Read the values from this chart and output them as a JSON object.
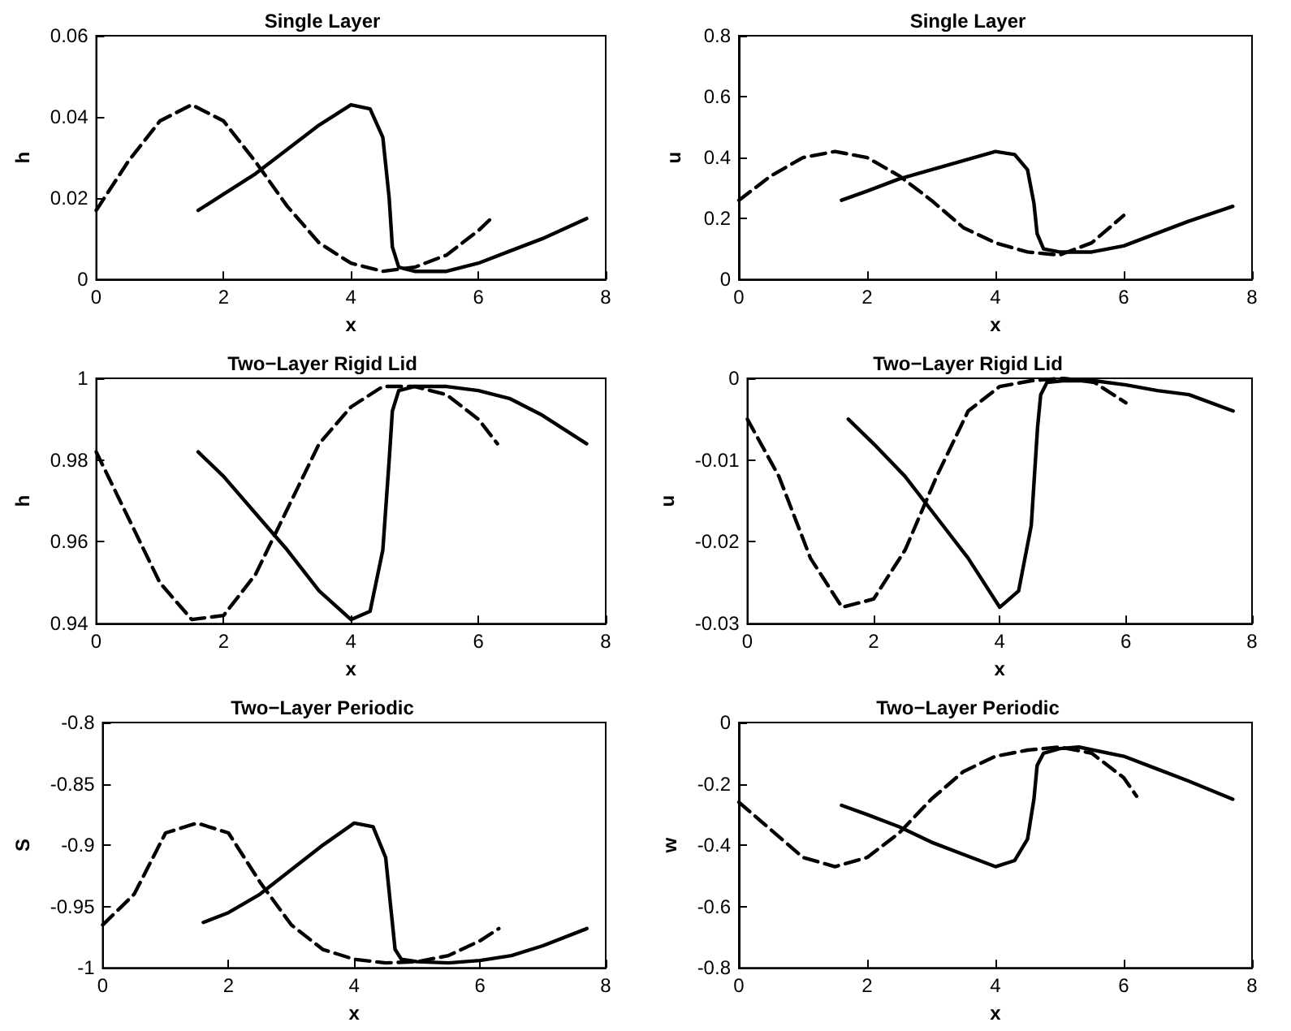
{
  "chart_data": [
    {
      "type": "line",
      "title": "Single Layer",
      "xlabel": "x",
      "ylabel": "h",
      "xlim": [
        0,
        8
      ],
      "xticks": [
        0,
        2,
        4,
        6,
        8
      ],
      "ylim": [
        0,
        0.06
      ],
      "yticks": [
        0,
        0.02,
        0.04,
        0.06
      ],
      "grid": false,
      "marker": "none",
      "series": [
        {
          "color": "#000000",
          "line_style": "dashed",
          "x": [
            0,
            0.5,
            1,
            1.5,
            2,
            2.5,
            3,
            3.5,
            4,
            4.5,
            5,
            5.5,
            6,
            6.2
          ],
          "values": [
            0.017,
            0.029,
            0.039,
            0.043,
            0.039,
            0.029,
            0.018,
            0.009,
            0.004,
            0.002,
            0.003,
            0.006,
            0.012,
            0.015
          ]
        },
        {
          "color": "#000000",
          "line_style": "solid",
          "x": [
            1.6,
            2,
            2.5,
            3,
            3.5,
            4,
            4.3,
            4.5,
            4.6,
            4.65,
            4.75,
            5,
            5.5,
            6,
            6.5,
            7,
            7.7
          ],
          "values": [
            0.017,
            0.021,
            0.026,
            0.032,
            0.038,
            0.043,
            0.042,
            0.035,
            0.02,
            0.008,
            0.003,
            0.002,
            0.002,
            0.004,
            0.007,
            0.01,
            0.015
          ]
        }
      ]
    },
    {
      "type": "line",
      "title": "Single Layer",
      "xlabel": "x",
      "ylabel": "u",
      "xlim": [
        0,
        8
      ],
      "xticks": [
        0,
        2,
        4,
        6,
        8
      ],
      "ylim": [
        0,
        0.8
      ],
      "yticks": [
        0,
        0.2,
        0.4,
        0.6,
        0.8
      ],
      "grid": false,
      "marker": "none",
      "series": [
        {
          "color": "#000000",
          "line_style": "dashed",
          "x": [
            0,
            0.5,
            1,
            1.5,
            2,
            2.5,
            3,
            3.5,
            4,
            4.5,
            5,
            5.5,
            6
          ],
          "values": [
            0.26,
            0.34,
            0.4,
            0.42,
            0.4,
            0.34,
            0.26,
            0.17,
            0.12,
            0.09,
            0.08,
            0.12,
            0.21
          ]
        },
        {
          "color": "#000000",
          "line_style": "solid",
          "x": [
            1.6,
            2,
            2.5,
            3,
            3.5,
            4,
            4.3,
            4.5,
            4.6,
            4.65,
            4.75,
            5,
            5.5,
            6,
            6.5,
            7,
            7.7
          ],
          "values": [
            0.26,
            0.29,
            0.33,
            0.36,
            0.39,
            0.42,
            0.41,
            0.36,
            0.25,
            0.15,
            0.1,
            0.09,
            0.09,
            0.11,
            0.15,
            0.19,
            0.24
          ]
        }
      ]
    },
    {
      "type": "line",
      "title": "Two−Layer Rigid Lid",
      "xlabel": "x",
      "ylabel": "h",
      "xlim": [
        0,
        8
      ],
      "xticks": [
        0,
        2,
        4,
        6,
        8
      ],
      "ylim": [
        0.94,
        1
      ],
      "yticks": [
        0.94,
        0.96,
        0.98,
        1
      ],
      "grid": false,
      "marker": "none",
      "series": [
        {
          "color": "#000000",
          "line_style": "dashed",
          "x": [
            0,
            0.5,
            1,
            1.5,
            2,
            2.5,
            3,
            3.5,
            4,
            4.5,
            5,
            5.5,
            6,
            6.3
          ],
          "values": [
            0.982,
            0.966,
            0.95,
            0.941,
            0.942,
            0.952,
            0.968,
            0.984,
            0.993,
            0.998,
            0.998,
            0.996,
            0.99,
            0.984
          ]
        },
        {
          "color": "#000000",
          "line_style": "solid",
          "x": [
            1.6,
            2,
            2.5,
            3,
            3.5,
            4,
            4.3,
            4.5,
            4.6,
            4.65,
            4.75,
            5,
            5.5,
            6,
            6.5,
            7,
            7.7
          ],
          "values": [
            0.982,
            0.976,
            0.967,
            0.958,
            0.948,
            0.941,
            0.943,
            0.958,
            0.98,
            0.992,
            0.997,
            0.998,
            0.998,
            0.997,
            0.995,
            0.991,
            0.984
          ]
        }
      ]
    },
    {
      "type": "line",
      "title": "Two−Layer Rigid Lid",
      "xlabel": "x",
      "ylabel": "u",
      "xlim": [
        0,
        8
      ],
      "xticks": [
        0,
        2,
        4,
        6,
        8
      ],
      "ylim": [
        -0.03,
        0
      ],
      "yticks": [
        -0.03,
        -0.02,
        -0.01,
        0
      ],
      "grid": false,
      "marker": "none",
      "series": [
        {
          "color": "#000000",
          "line_style": "dashed",
          "x": [
            0,
            0.5,
            1,
            1.5,
            2,
            2.5,
            3,
            3.5,
            4,
            4.5,
            5,
            5.5,
            6
          ],
          "values": [
            -0.005,
            -0.012,
            -0.022,
            -0.028,
            -0.027,
            -0.021,
            -0.012,
            -0.004,
            -0.001,
            -0.0003,
            0,
            -0.0005,
            -0.003
          ]
        },
        {
          "color": "#000000",
          "line_style": "solid",
          "x": [
            1.6,
            2,
            2.5,
            3,
            3.5,
            4,
            4.3,
            4.5,
            4.6,
            4.65,
            4.75,
            5,
            5.5,
            6,
            6.5,
            7,
            7.7
          ],
          "values": [
            -0.005,
            -0.008,
            -0.012,
            -0.017,
            -0.022,
            -0.028,
            -0.026,
            -0.018,
            -0.006,
            -0.002,
            -0.0005,
            -0.0003,
            -0.0003,
            -0.0008,
            -0.0015,
            -0.002,
            -0.004
          ]
        }
      ]
    },
    {
      "type": "line",
      "title": "Two−Layer Periodic",
      "xlabel": "x",
      "ylabel": "S",
      "xlim": [
        0,
        8
      ],
      "xticks": [
        0,
        2,
        4,
        6,
        8
      ],
      "ylim": [
        -1,
        -0.8
      ],
      "yticks": [
        -1,
        -0.95,
        -0.9,
        -0.85,
        -0.8
      ],
      "grid": false,
      "marker": "none",
      "series": [
        {
          "color": "#000000",
          "line_style": "dashed",
          "x": [
            0,
            0.5,
            1,
            1.5,
            2,
            2.5,
            3,
            3.5,
            4,
            4.5,
            5,
            5.5,
            6,
            6.3
          ],
          "values": [
            -0.965,
            -0.94,
            -0.89,
            -0.882,
            -0.89,
            -0.93,
            -0.965,
            -0.985,
            -0.993,
            -0.996,
            -0.995,
            -0.99,
            -0.978,
            -0.968
          ]
        },
        {
          "color": "#000000",
          "line_style": "solid",
          "x": [
            1.6,
            2,
            2.5,
            3,
            3.5,
            4,
            4.3,
            4.5,
            4.6,
            4.65,
            4.75,
            5,
            5.5,
            6,
            6.5,
            7,
            7.7
          ],
          "values": [
            -0.963,
            -0.955,
            -0.94,
            -0.92,
            -0.9,
            -0.882,
            -0.885,
            -0.91,
            -0.96,
            -0.985,
            -0.993,
            -0.995,
            -0.996,
            -0.994,
            -0.99,
            -0.982,
            -0.968
          ]
        }
      ]
    },
    {
      "type": "line",
      "title": "Two−Layer Periodic",
      "xlabel": "x",
      "ylabel": "w",
      "xlim": [
        0,
        8
      ],
      "xticks": [
        0,
        2,
        4,
        6,
        8
      ],
      "ylim": [
        -0.8,
        0
      ],
      "yticks": [
        -0.8,
        -0.6,
        -0.4,
        -0.2,
        0
      ],
      "grid": false,
      "marker": "none",
      "series": [
        {
          "color": "#000000",
          "line_style": "dashed",
          "x": [
            0,
            0.5,
            1,
            1.5,
            2,
            2.5,
            3,
            3.5,
            4,
            4.5,
            5,
            5.5,
            6,
            6.2
          ],
          "values": [
            -0.26,
            -0.35,
            -0.44,
            -0.47,
            -0.44,
            -0.36,
            -0.25,
            -0.16,
            -0.11,
            -0.09,
            -0.08,
            -0.1,
            -0.18,
            -0.24
          ]
        },
        {
          "color": "#000000",
          "line_style": "solid",
          "x": [
            1.6,
            2,
            2.5,
            3,
            3.5,
            4,
            4.3,
            4.5,
            4.6,
            4.65,
            4.75,
            5,
            5.3,
            6,
            6.5,
            7,
            7.7
          ],
          "values": [
            -0.27,
            -0.3,
            -0.34,
            -0.39,
            -0.43,
            -0.47,
            -0.45,
            -0.38,
            -0.25,
            -0.14,
            -0.1,
            -0.085,
            -0.08,
            -0.11,
            -0.15,
            -0.19,
            -0.25
          ]
        }
      ]
    }
  ]
}
